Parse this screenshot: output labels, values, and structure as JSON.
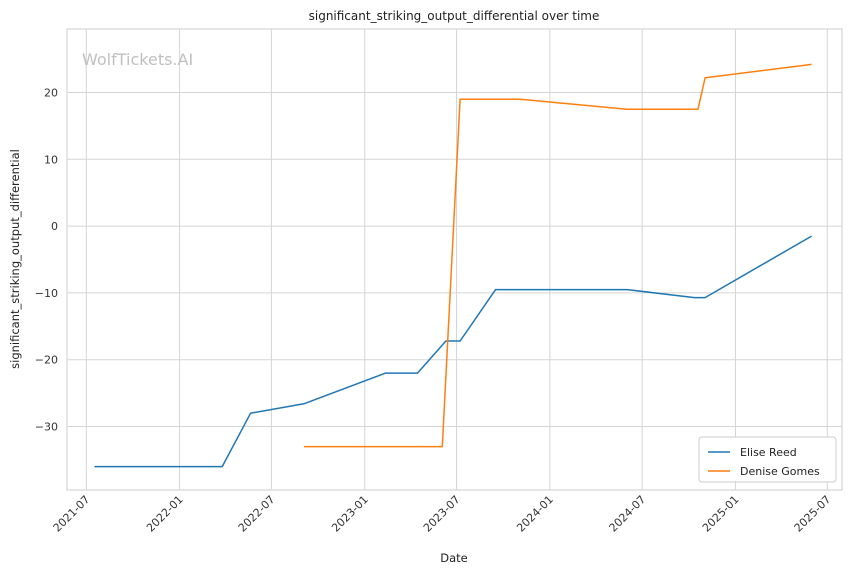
{
  "watermark": "WolfTickets.AI",
  "chart_data": {
    "type": "line",
    "title": "significant_striking_output_differential over time",
    "xlabel": "Date",
    "ylabel": "significant_striking_output_differential",
    "x_ticks": [
      "2021-07",
      "2022-01",
      "2022-07",
      "2023-01",
      "2023-07",
      "2024-01",
      "2024-07",
      "2025-01",
      "2025-07"
    ],
    "y_ticks": [
      -30,
      -20,
      -10,
      0,
      10,
      20
    ],
    "xlim": [
      "2021-05-24",
      "2025-07-30"
    ],
    "ylim": [
      -39.5,
      29.5
    ],
    "grid": true,
    "legend_position": "lower-right",
    "series": [
      {
        "name": "Elise Reed",
        "color": "#1f77b4",
        "points": [
          [
            "2021-07-17",
            -36.0
          ],
          [
            "2022-03-26",
            -36.0
          ],
          [
            "2022-05-21",
            -28.0
          ],
          [
            "2022-09-03",
            -26.6
          ],
          [
            "2023-02-11",
            -22.0
          ],
          [
            "2023-04-15",
            -22.0
          ],
          [
            "2023-06-10",
            -17.2
          ],
          [
            "2023-07-08",
            -17.2
          ],
          [
            "2023-09-16",
            -9.5
          ],
          [
            "2024-06-01",
            -9.5
          ],
          [
            "2024-10-12",
            -10.7
          ],
          [
            "2024-11-02",
            -10.7
          ],
          [
            "2025-05-31",
            -1.5
          ]
        ]
      },
      {
        "name": "Denise Gomes",
        "color": "#ff7f0e",
        "points": [
          [
            "2022-09-03",
            -33.0
          ],
          [
            "2023-06-03",
            -33.0
          ],
          [
            "2023-07-08",
            19.0
          ],
          [
            "2023-11-04",
            19.0
          ],
          [
            "2024-06-01",
            17.5
          ],
          [
            "2024-10-19",
            17.5
          ],
          [
            "2024-11-02",
            22.2
          ],
          [
            "2025-05-31",
            24.2
          ]
        ]
      }
    ]
  }
}
